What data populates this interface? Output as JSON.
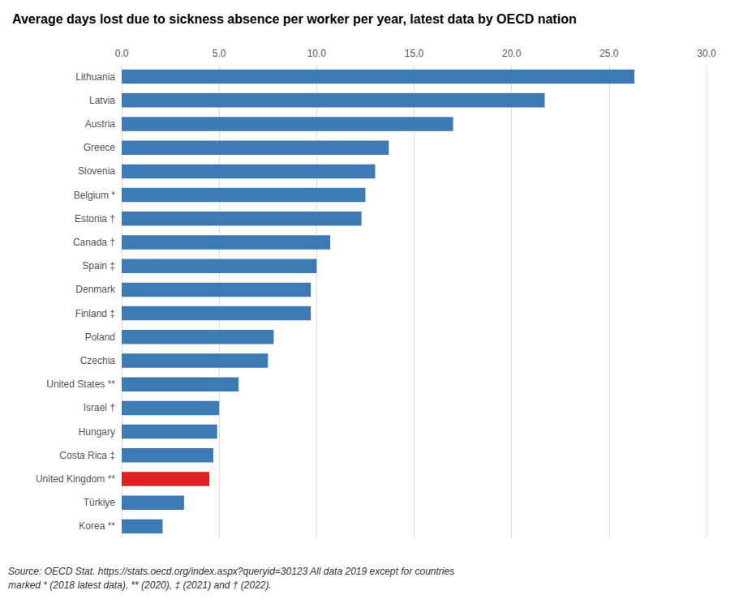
{
  "chart_data": {
    "type": "bar",
    "orientation": "horizontal",
    "title": "Average days lost due to sickness absence per worker per year, latest data by OECD nation",
    "categories": [
      "Lithuania",
      "Latvia",
      "Austria",
      "Greece",
      "Slovenia",
      "Belgium *",
      "Estonia †",
      "Canada †",
      "Spain ‡",
      "Denmark",
      "Finland ‡",
      "Poland",
      "Czechia",
      "United States **",
      "Israel †",
      "Hungary",
      "Costa Rica ‡",
      "United Kingdom **",
      "Türkiye",
      "Korea **"
    ],
    "values": [
      26.3,
      21.7,
      17.0,
      13.7,
      13.0,
      12.5,
      12.3,
      10.7,
      10.0,
      9.7,
      9.7,
      7.8,
      7.5,
      6.0,
      5.0,
      4.9,
      4.7,
      4.5,
      3.2,
      2.1
    ],
    "colors": [
      "#3d7ab5",
      "#3d7ab5",
      "#3d7ab5",
      "#3d7ab5",
      "#3d7ab5",
      "#3d7ab5",
      "#3d7ab5",
      "#3d7ab5",
      "#3d7ab5",
      "#3d7ab5",
      "#3d7ab5",
      "#3d7ab5",
      "#3d7ab5",
      "#3d7ab5",
      "#3d7ab5",
      "#3d7ab5",
      "#3d7ab5",
      "#e02020",
      "#3d7ab5",
      "#3d7ab5"
    ],
    "xlim": [
      0,
      30.0
    ],
    "xticks": [
      {
        "value": 0.0,
        "label": "0.0"
      },
      {
        "value": 5.0,
        "label": "5.0"
      },
      {
        "value": 10.0,
        "label": "10.0"
      },
      {
        "value": 15.0,
        "label": "15.0"
      },
      {
        "value": 20.0,
        "label": "20.0"
      },
      {
        "value": 25.0,
        "label": "25.0"
      },
      {
        "value": 30.0,
        "label": "30.0"
      }
    ],
    "grid": true,
    "annotations": [
      "Source: OECD Stat. https://stats.oecd.org/index.aspx?queryid=30123 All data 2019 except for countries\nmarked * (2018 latest data), ** (2020), ‡ (2021) and † (2022)."
    ]
  }
}
